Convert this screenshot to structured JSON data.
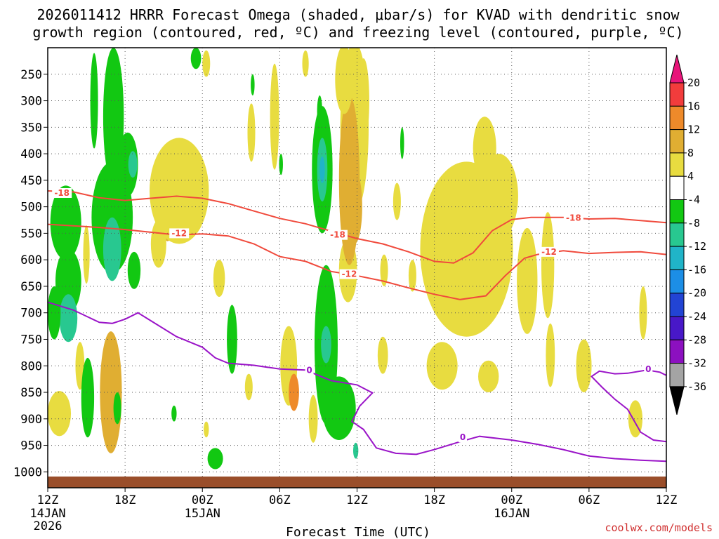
{
  "title_line1": "2026011412 HRRR Forecast Omega (shaded, μbar/s) for KVAD with dendritic snow",
  "title_line2": "growth region (contoured, red, ºC) and freezing level (contoured, purple, ºC)",
  "xlabel": "Forecast Time (UTC)",
  "credit": "coolwx.com/models",
  "chart_data": {
    "type": "heatmap",
    "x_unit": "forecast hour",
    "x_range": [
      0,
      48
    ],
    "y_unit": "hPa",
    "y_range": [
      1030,
      200
    ],
    "y_ticks": [
      250,
      300,
      350,
      400,
      450,
      500,
      550,
      600,
      650,
      700,
      750,
      800,
      850,
      900,
      950,
      1000
    ],
    "x_ticks": [
      {
        "hour": 0,
        "label": "12Z",
        "date": "14JAN",
        "year": "2026"
      },
      {
        "hour": 6,
        "label": "18Z",
        "date": "",
        "year": ""
      },
      {
        "hour": 12,
        "label": "00Z",
        "date": "15JAN",
        "year": ""
      },
      {
        "hour": 18,
        "label": "06Z",
        "date": "",
        "year": ""
      },
      {
        "hour": 24,
        "label": "12Z",
        "date": "",
        "year": ""
      },
      {
        "hour": 30,
        "label": "18Z",
        "date": "",
        "year": ""
      },
      {
        "hour": 36,
        "label": "00Z",
        "date": "16JAN",
        "year": ""
      },
      {
        "hour": 42,
        "label": "06Z",
        "date": "",
        "year": ""
      },
      {
        "hour": 48,
        "label": "12Z",
        "date": "",
        "year": ""
      }
    ],
    "colorbar": {
      "labels": [
        "20",
        "16",
        "12",
        "8",
        "4",
        "-4",
        "-8",
        "-12",
        "-16",
        "-20",
        "-24",
        "-28",
        "-32",
        "-36"
      ],
      "bins": [
        {
          "min": 20,
          "max": 24,
          "color": "#e8157a"
        },
        {
          "min": 16,
          "max": 20,
          "color": "#f23c3c"
        },
        {
          "min": 12,
          "max": 16,
          "color": "#ee8a2a"
        },
        {
          "min": 8,
          "max": 12,
          "color": "#e0ae32"
        },
        {
          "min": 4,
          "max": 8,
          "color": "#e8dc40"
        },
        {
          "min": -4,
          "max": 4,
          "color": "#ffffff"
        },
        {
          "min": -8,
          "max": -4,
          "color": "#12c812"
        },
        {
          "min": -12,
          "max": -8,
          "color": "#28c890"
        },
        {
          "min": -16,
          "max": -12,
          "color": "#20b4c8"
        },
        {
          "min": -20,
          "max": -16,
          "color": "#1c8ee6"
        },
        {
          "min": -24,
          "max": -20,
          "color": "#2244d4"
        },
        {
          "min": -28,
          "max": -24,
          "color": "#4818c8"
        },
        {
          "min": -32,
          "max": -28,
          "color": "#8c10c0"
        },
        {
          "min": -36,
          "max": -32,
          "color": "#a4a4a4"
        }
      ]
    },
    "omega_cells": [
      {
        "t": 0.9,
        "p": 880,
        "dt": 0.55,
        "dp": 45,
        "v": 16
      },
      {
        "t": 0.9,
        "p": 890,
        "dt": 0.9,
        "dp": 85,
        "v": 6
      },
      {
        "t": 2.5,
        "p": 800,
        "dt": 0.35,
        "dp": 90,
        "v": 6
      },
      {
        "t": 4.9,
        "p": 850,
        "dt": 0.5,
        "dp": 140,
        "v": 24
      },
      {
        "t": 4.9,
        "p": 850,
        "dt": 0.85,
        "dp": 230,
        "v": 10
      },
      {
        "t": 9.3,
        "p": 520,
        "dt": 0.45,
        "dp": 90,
        "v": 10
      },
      {
        "t": 10.2,
        "p": 470,
        "dt": 2.3,
        "dp": 200,
        "v": 5
      },
      {
        "t": 8.6,
        "p": 570,
        "dt": 0.6,
        "dp": 90,
        "v": 5
      },
      {
        "t": 13.3,
        "p": 635,
        "dt": 0.45,
        "dp": 70,
        "v": 5
      },
      {
        "t": 15.6,
        "p": 840,
        "dt": 0.3,
        "dp": 50,
        "v": 5
      },
      {
        "t": 15.8,
        "p": 360,
        "dt": 0.3,
        "dp": 110,
        "v": 5
      },
      {
        "t": 17.6,
        "p": 330,
        "dt": 0.35,
        "dp": 200,
        "v": 5
      },
      {
        "t": 18.7,
        "p": 800,
        "dt": 0.65,
        "dp": 150,
        "v": 6
      },
      {
        "t": 19.1,
        "p": 850,
        "dt": 0.4,
        "dp": 70,
        "v": 12
      },
      {
        "t": 20.0,
        "p": 230,
        "dt": 0.25,
        "dp": 50,
        "v": 5
      },
      {
        "t": 23.8,
        "p": 350,
        "dt": 1.1,
        "dp": 320,
        "v": 5
      },
      {
        "t": 23.8,
        "p": 500,
        "dt": 0.6,
        "dp": 140,
        "v": 10
      },
      {
        "t": 24.5,
        "p": 300,
        "dt": 0.45,
        "dp": 160,
        "v": 5
      },
      {
        "t": 23.3,
        "p": 620,
        "dt": 0.7,
        "dp": 120,
        "v": 5
      },
      {
        "t": 26.1,
        "p": 620,
        "dt": 0.3,
        "dp": 60,
        "v": 5
      },
      {
        "t": 27.1,
        "p": 490,
        "dt": 0.3,
        "dp": 70,
        "v": 5
      },
      {
        "t": 28.3,
        "p": 630,
        "dt": 0.3,
        "dp": 60,
        "v": 5
      },
      {
        "t": 32.5,
        "p": 580,
        "dt": 3.6,
        "dp": 330,
        "v": 5
      },
      {
        "t": 33.9,
        "p": 390,
        "dt": 0.9,
        "dp": 120,
        "v": 5
      },
      {
        "t": 35.0,
        "p": 480,
        "dt": 1.5,
        "dp": 160,
        "v": 5
      },
      {
        "t": 37.2,
        "p": 640,
        "dt": 0.8,
        "dp": 200,
        "v": 5
      },
      {
        "t": 38.8,
        "p": 610,
        "dt": 0.5,
        "dp": 200,
        "v": 5
      },
      {
        "t": 39.0,
        "p": 780,
        "dt": 0.35,
        "dp": 120,
        "v": 5
      },
      {
        "t": 41.6,
        "p": 800,
        "dt": 0.6,
        "dp": 100,
        "v": 5
      },
      {
        "t": 45.6,
        "p": 900,
        "dt": 0.55,
        "dp": 70,
        "v": 5
      },
      {
        "t": 46.2,
        "p": 700,
        "dt": 0.3,
        "dp": 100,
        "v": 5
      },
      {
        "t": 30.6,
        "p": 800,
        "dt": 1.2,
        "dp": 90,
        "v": 5
      },
      {
        "t": 34.2,
        "p": 820,
        "dt": 0.8,
        "dp": 60,
        "v": 5
      },
      {
        "t": 20.6,
        "p": 900,
        "dt": 0.35,
        "dp": 90,
        "v": 5
      },
      {
        "t": 23.4,
        "p": 450,
        "dt": 0.8,
        "dp": 320,
        "v": 10
      },
      {
        "t": 23.0,
        "p": 260,
        "dt": 0.7,
        "dp": 130,
        "v": 5
      },
      {
        "t": 26.0,
        "p": 780,
        "dt": 0.4,
        "dp": 70,
        "v": 5
      },
      {
        "t": 3.0,
        "p": 590,
        "dt": 0.25,
        "dp": 110,
        "v": 5
      },
      {
        "t": 12.3,
        "p": 920,
        "dt": 0.2,
        "dp": 30,
        "v": 5
      },
      {
        "t": 1.4,
        "p": 530,
        "dt": 1.2,
        "dp": 140,
        "v": -6
      },
      {
        "t": 1.6,
        "p": 640,
        "dt": 1.0,
        "dp": 120,
        "v": -6
      },
      {
        "t": 1.6,
        "p": 710,
        "dt": 0.7,
        "dp": 90,
        "v": -10
      },
      {
        "t": 0.5,
        "p": 700,
        "dt": 0.5,
        "dp": 100,
        "v": -6
      },
      {
        "t": 3.6,
        "p": 300,
        "dt": 0.3,
        "dp": 180,
        "v": -6
      },
      {
        "t": 5.1,
        "p": 330,
        "dt": 0.8,
        "dp": 260,
        "v": -6
      },
      {
        "t": 5.0,
        "p": 520,
        "dt": 1.6,
        "dp": 210,
        "v": -6
      },
      {
        "t": 5.0,
        "p": 580,
        "dt": 0.7,
        "dp": 120,
        "v": -10
      },
      {
        "t": 6.2,
        "p": 420,
        "dt": 0.8,
        "dp": 120,
        "v": -6
      },
      {
        "t": 6.6,
        "p": 420,
        "dt": 0.35,
        "dp": 50,
        "v": -10
      },
      {
        "t": 6.7,
        "p": 620,
        "dt": 0.5,
        "dp": 70,
        "v": -6
      },
      {
        "t": 3.1,
        "p": 880,
        "dt": 0.35,
        "dp": 90,
        "v": -10
      },
      {
        "t": 3.1,
        "p": 860,
        "dt": 0.5,
        "dp": 150,
        "v": -6
      },
      {
        "t": 5.4,
        "p": 880,
        "dt": 0.3,
        "dp": 60,
        "v": -6
      },
      {
        "t": 9.8,
        "p": 890,
        "dt": 0.2,
        "dp": 30,
        "v": -6
      },
      {
        "t": 11.5,
        "p": 220,
        "dt": 0.4,
        "dp": 40,
        "v": -6
      },
      {
        "t": 13.0,
        "p": 975,
        "dt": 0.6,
        "dp": 40,
        "v": -6
      },
      {
        "t": 14.3,
        "p": 750,
        "dt": 0.4,
        "dp": 130,
        "v": -6
      },
      {
        "t": 15.9,
        "p": 270,
        "dt": 0.15,
        "dp": 40,
        "v": -6
      },
      {
        "t": 18.1,
        "p": 420,
        "dt": 0.15,
        "dp": 40,
        "v": -6
      },
      {
        "t": 21.1,
        "p": 320,
        "dt": 0.2,
        "dp": 60,
        "v": -6
      },
      {
        "t": 21.3,
        "p": 430,
        "dt": 0.8,
        "dp": 240,
        "v": -6
      },
      {
        "t": 21.3,
        "p": 430,
        "dt": 0.4,
        "dp": 120,
        "v": -10
      },
      {
        "t": 21.3,
        "p": 430,
        "dt": 0.2,
        "dp": 50,
        "v": -14
      },
      {
        "t": 21.6,
        "p": 760,
        "dt": 0.9,
        "dp": 300,
        "v": -6
      },
      {
        "t": 21.6,
        "p": 760,
        "dt": 0.4,
        "dp": 70,
        "v": -10
      },
      {
        "t": 22.6,
        "p": 880,
        "dt": 1.3,
        "dp": 120,
        "v": -6
      },
      {
        "t": 23.9,
        "p": 960,
        "dt": 0.2,
        "dp": 30,
        "v": -10
      },
      {
        "t": 27.5,
        "p": 380,
        "dt": 0.15,
        "dp": 60,
        "v": -6
      },
      {
        "t": 12.3,
        "p": 230,
        "dt": 0.3,
        "dp": 50,
        "v": 6
      }
    ],
    "contours": [
      {
        "name": "-18 °C",
        "color": "#f04a3c",
        "points": [
          [
            0,
            470
          ],
          [
            2,
            472
          ],
          [
            4,
            483
          ],
          [
            6,
            488
          ],
          [
            8,
            484
          ],
          [
            10,
            480
          ],
          [
            12,
            484
          ],
          [
            14,
            494
          ],
          [
            16,
            508
          ],
          [
            18,
            522
          ],
          [
            20,
            532
          ],
          [
            22,
            546
          ],
          [
            24,
            560
          ],
          [
            26,
            570
          ],
          [
            28,
            585
          ],
          [
            30,
            603
          ],
          [
            31.5,
            606
          ],
          [
            33,
            587
          ],
          [
            34.5,
            545
          ],
          [
            36,
            524
          ],
          [
            37.5,
            520
          ],
          [
            40,
            520
          ],
          [
            42,
            523
          ],
          [
            44,
            522
          ],
          [
            46,
            526
          ],
          [
            48,
            530
          ]
        ],
        "labels": [
          {
            "t": 1.1,
            "p": 474,
            "text": "-18"
          },
          {
            "t": 22.5,
            "p": 553,
            "text": "-18"
          },
          {
            "t": 40.8,
            "p": 521,
            "text": "-18"
          }
        ]
      },
      {
        "name": "-12 °C",
        "color": "#f04a3c",
        "points": [
          [
            0,
            533
          ],
          [
            2,
            536
          ],
          [
            4,
            539
          ],
          [
            6,
            543
          ],
          [
            8,
            548
          ],
          [
            10,
            553
          ],
          [
            12,
            551
          ],
          [
            14,
            555
          ],
          [
            16,
            570
          ],
          [
            18,
            594
          ],
          [
            20,
            603
          ],
          [
            22,
            622
          ],
          [
            24,
            630
          ],
          [
            26,
            640
          ],
          [
            28,
            653
          ],
          [
            30,
            665
          ],
          [
            32,
            675
          ],
          [
            34,
            668
          ],
          [
            35.5,
            630
          ],
          [
            37,
            597
          ],
          [
            38,
            590
          ],
          [
            40,
            583
          ],
          [
            42,
            588
          ],
          [
            44,
            586
          ],
          [
            46,
            585
          ],
          [
            48,
            590
          ]
        ],
        "labels": [
          {
            "t": 10.2,
            "p": 550,
            "text": "-12"
          },
          {
            "t": 23.4,
            "p": 627,
            "text": "-12"
          },
          {
            "t": 38.9,
            "p": 585,
            "text": "-12"
          }
        ]
      },
      {
        "name": "0 °C",
        "color": "#9a14c8",
        "points": [
          [
            0,
            680
          ],
          [
            2,
            695
          ],
          [
            4,
            718
          ],
          [
            5,
            720
          ],
          [
            6,
            712
          ],
          [
            7,
            700
          ],
          [
            8,
            715
          ],
          [
            10,
            745
          ],
          [
            12,
            765
          ],
          [
            13,
            785
          ],
          [
            14,
            795
          ],
          [
            16,
            799
          ],
          [
            18,
            806
          ],
          [
            20,
            808
          ],
          [
            22,
            828
          ],
          [
            24,
            836
          ],
          [
            25.2,
            851
          ],
          [
            24.2,
            876
          ],
          [
            23.6,
            905
          ],
          [
            24.5,
            920
          ],
          [
            25.5,
            955
          ],
          [
            27,
            965
          ],
          [
            28.6,
            967
          ],
          [
            30,
            958
          ],
          [
            32,
            943
          ],
          [
            33.5,
            933
          ],
          [
            36,
            940
          ],
          [
            38,
            948
          ],
          [
            40,
            958
          ],
          [
            42,
            970
          ],
          [
            44,
            975
          ],
          [
            46,
            978
          ],
          [
            48,
            980
          ]
        ],
        "labels": [
          {
            "t": 20.3,
            "p": 808,
            "text": "0"
          },
          {
            "t": 32.2,
            "p": 935,
            "text": "0"
          }
        ]
      },
      {
        "name": "0 °C (right)",
        "color": "#9a14c8",
        "points": [
          [
            48,
            943
          ],
          [
            47,
            940
          ],
          [
            46,
            925
          ],
          [
            45,
            882
          ],
          [
            44,
            863
          ],
          [
            43,
            840
          ],
          [
            42.2,
            820
          ],
          [
            42.8,
            810
          ],
          [
            44,
            815
          ],
          [
            45,
            814
          ],
          [
            46.5,
            808
          ],
          [
            47.5,
            812
          ],
          [
            48,
            818
          ]
        ],
        "labels": [
          {
            "t": 46.6,
            "p": 806,
            "text": "0"
          }
        ]
      }
    ]
  }
}
